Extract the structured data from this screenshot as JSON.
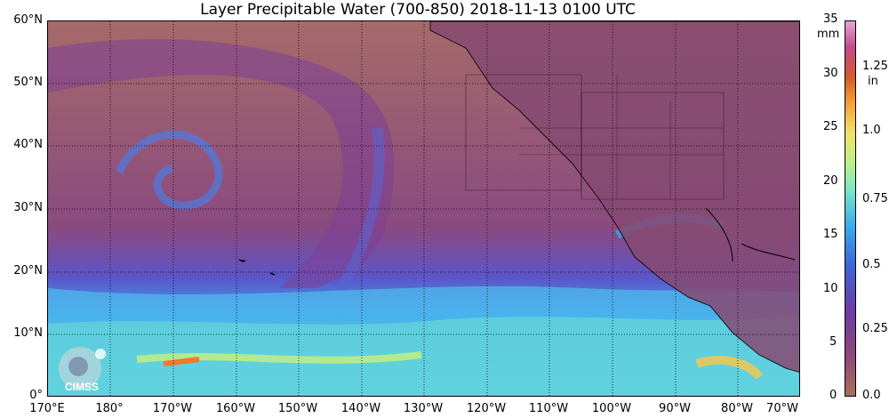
{
  "title": "Layer Precipitable Water (700-850)  2018-11-13 0100 UTC",
  "map": {
    "lat_labels": [
      "60°N",
      "50°N",
      "40°N",
      "30°N",
      "20°N",
      "10°N",
      "0°"
    ],
    "lon_labels": [
      "170°E",
      "180°",
      "170°W",
      "160°W",
      "150°W",
      "140°W",
      "130°W",
      "120°W",
      "110°W",
      "100°W",
      "90°W",
      "80°W",
      "70°W"
    ]
  },
  "colorbar": {
    "mm_unit": "mm",
    "in_unit": "in",
    "mm_ticks": [
      "35",
      "30",
      "25",
      "20",
      "15",
      "10",
      "5",
      "0"
    ],
    "in_ticks": [
      "1.25",
      "1.0",
      "0.75",
      "0.5",
      "0.25",
      "0.0"
    ],
    "colors": [
      "#a8705a",
      "#8f4a78",
      "#6f3aa2",
      "#3d65d8",
      "#3aa9ec",
      "#7be6c8",
      "#b9f08a",
      "#f0e36a",
      "#f4a13a",
      "#d65a2a",
      "#c04b8c",
      "#e4a3d6"
    ]
  },
  "logo": {
    "text": "CIMSS"
  }
}
